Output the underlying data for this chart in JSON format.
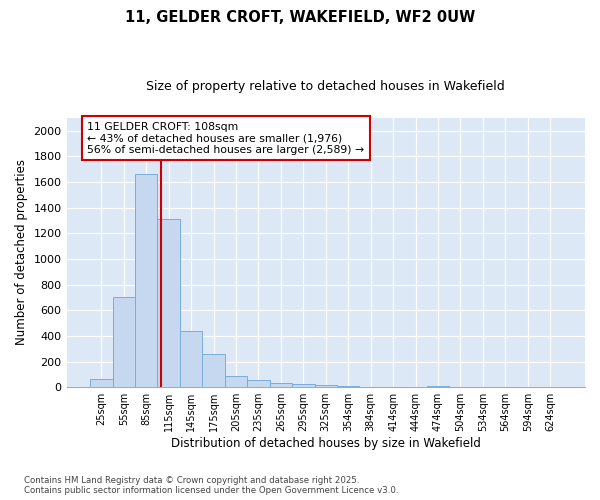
{
  "title_line1": "11, GELDER CROFT, WAKEFIELD, WF2 0UW",
  "title_line2": "Size of property relative to detached houses in Wakefield",
  "xlabel": "Distribution of detached houses by size in Wakefield",
  "ylabel": "Number of detached properties",
  "categories": [
    "25sqm",
    "55sqm",
    "85sqm",
    "115sqm",
    "145sqm",
    "175sqm",
    "205sqm",
    "235sqm",
    "265sqm",
    "295sqm",
    "325sqm",
    "354sqm",
    "384sqm",
    "414sqm",
    "444sqm",
    "474sqm",
    "504sqm",
    "534sqm",
    "564sqm",
    "594sqm",
    "624sqm"
  ],
  "values": [
    65,
    700,
    1660,
    1310,
    440,
    255,
    90,
    55,
    35,
    25,
    20,
    10,
    0,
    0,
    0,
    10,
    0,
    0,
    0,
    0,
    0
  ],
  "bar_color": "#c5d8f0",
  "bar_edge_color": "#7aaddb",
  "vline_x": 2.67,
  "vline_color": "#cc0000",
  "annotation_text": "11 GELDER CROFT: 108sqm\n← 43% of detached houses are smaller (1,976)\n56% of semi-detached houses are larger (2,589) →",
  "annotation_box_color": "#ffffff",
  "annotation_box_edge": "#cc0000",
  "ylim": [
    0,
    2100
  ],
  "yticks": [
    0,
    200,
    400,
    600,
    800,
    1000,
    1200,
    1400,
    1600,
    1800,
    2000
  ],
  "fig_background": "#ffffff",
  "plot_background": "#dce8f5",
  "grid_color": "#ffffff",
  "footer_line1": "Contains HM Land Registry data © Crown copyright and database right 2025.",
  "footer_line2": "Contains public sector information licensed under the Open Government Licence v3.0."
}
